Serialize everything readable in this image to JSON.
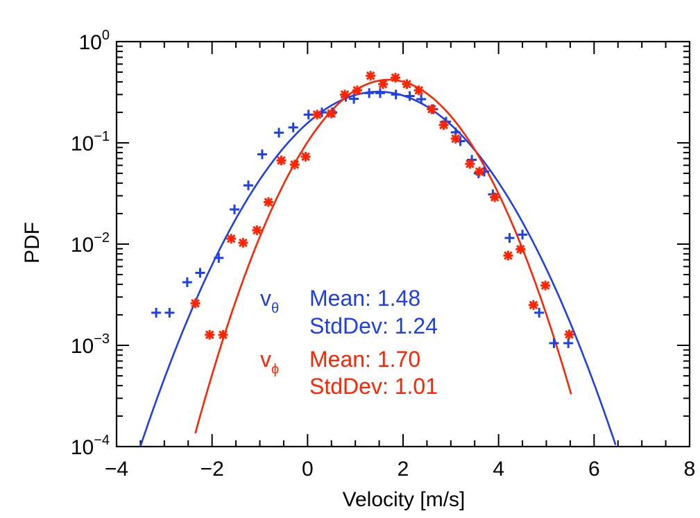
{
  "chart_data": {
    "type": "scatter",
    "xlabel": "Velocity [m/s]",
    "ylabel": "PDF",
    "xlim": [
      -4,
      8
    ],
    "ylim": [
      0.0001,
      1
    ],
    "yscale": "log",
    "x_ticks": [
      -4,
      -2,
      0,
      2,
      4,
      6,
      8
    ],
    "x_tick_labels": [
      "−4",
      "−2",
      "0",
      "2",
      "4",
      "6",
      "8"
    ],
    "y_ticks": [
      {
        "base": "10",
        "exp": "0",
        "value": 1
      },
      {
        "base": "10",
        "exp": "−1",
        "value": 0.1
      },
      {
        "base": "10",
        "exp": "−2",
        "value": 0.01
      },
      {
        "base": "10",
        "exp": "−3",
        "value": 0.001
      },
      {
        "base": "10",
        "exp": "−4",
        "value": 0.0001
      }
    ],
    "series": [
      {
        "marker": "plus",
        "color": "#1f3fe6",
        "points": [
          [
            -3.17,
            0.0021
          ],
          [
            -2.89,
            0.0021
          ],
          [
            -2.52,
            0.0042
          ],
          [
            -2.25,
            0.0052
          ],
          [
            -1.86,
            0.0073
          ],
          [
            -1.53,
            0.022
          ],
          [
            -1.24,
            0.038
          ],
          [
            -0.95,
            0.077
          ],
          [
            -0.6,
            0.126
          ],
          [
            -0.3,
            0.142
          ],
          [
            0.02,
            0.19
          ],
          [
            0.3,
            0.2
          ],
          [
            0.52,
            0.2
          ],
          [
            0.8,
            0.285
          ],
          [
            0.97,
            0.272
          ],
          [
            1.29,
            0.31
          ],
          [
            1.52,
            0.31
          ],
          [
            1.85,
            0.3
          ],
          [
            2.14,
            0.29
          ],
          [
            2.38,
            0.27
          ],
          [
            2.63,
            0.215
          ],
          [
            2.9,
            0.162
          ],
          [
            3.1,
            0.127
          ],
          [
            3.2,
            0.104
          ],
          [
            3.44,
            0.068
          ],
          [
            3.58,
            0.05
          ],
          [
            3.7,
            0.052
          ],
          [
            3.88,
            0.031
          ],
          [
            4.23,
            0.0115
          ],
          [
            4.5,
            0.0124
          ],
          [
            4.85,
            0.0021
          ],
          [
            5.16,
            0.00105
          ],
          [
            5.46,
            0.00105
          ]
        ],
        "fit": {
          "mean": 1.48,
          "std": 1.24,
          "amp": 0.32,
          "xrange": [
            -3.5,
            6.45
          ]
        }
      },
      {
        "marker": "asterisk",
        "color": "#ff2400",
        "points": [
          [
            -2.35,
            0.0026
          ],
          [
            -2.05,
            0.00127
          ],
          [
            -1.77,
            0.00127
          ],
          [
            -1.6,
            0.0113
          ],
          [
            -1.35,
            0.0103
          ],
          [
            -1.06,
            0.0137
          ],
          [
            -0.82,
            0.026
          ],
          [
            -0.55,
            0.067
          ],
          [
            -0.27,
            0.061
          ],
          [
            -0.04,
            0.073
          ],
          [
            0.2,
            0.19
          ],
          [
            0.5,
            0.195
          ],
          [
            0.78,
            0.3
          ],
          [
            1.04,
            0.33
          ],
          [
            1.32,
            0.46
          ],
          [
            1.58,
            0.38
          ],
          [
            1.84,
            0.44
          ],
          [
            2.08,
            0.38
          ],
          [
            2.33,
            0.33
          ],
          [
            2.6,
            0.215
          ],
          [
            2.85,
            0.15
          ],
          [
            3.1,
            0.11
          ],
          [
            3.4,
            0.062
          ],
          [
            3.6,
            0.052
          ],
          [
            3.92,
            0.029
          ],
          [
            4.2,
            0.0077
          ],
          [
            4.46,
            0.0089
          ],
          [
            4.73,
            0.0025
          ],
          [
            4.98,
            0.0039
          ],
          [
            5.48,
            0.00128
          ]
        ],
        "fit": {
          "mean": 1.7,
          "std": 1.01,
          "amp": 0.42,
          "xrange": [
            -2.35,
            5.52
          ]
        }
      }
    ],
    "annotations": {
      "theta": {
        "symbol": "v",
        "subscript": "θ",
        "mean": "Mean:  1.48",
        "std": "StdDev:  1.24",
        "color": "#1f3fe6"
      },
      "phi": {
        "symbol": "v",
        "subscript": "ϕ",
        "mean": "Mean:  1.70",
        "std": "StdDev:  1.01",
        "color": "#ff2400"
      }
    }
  }
}
